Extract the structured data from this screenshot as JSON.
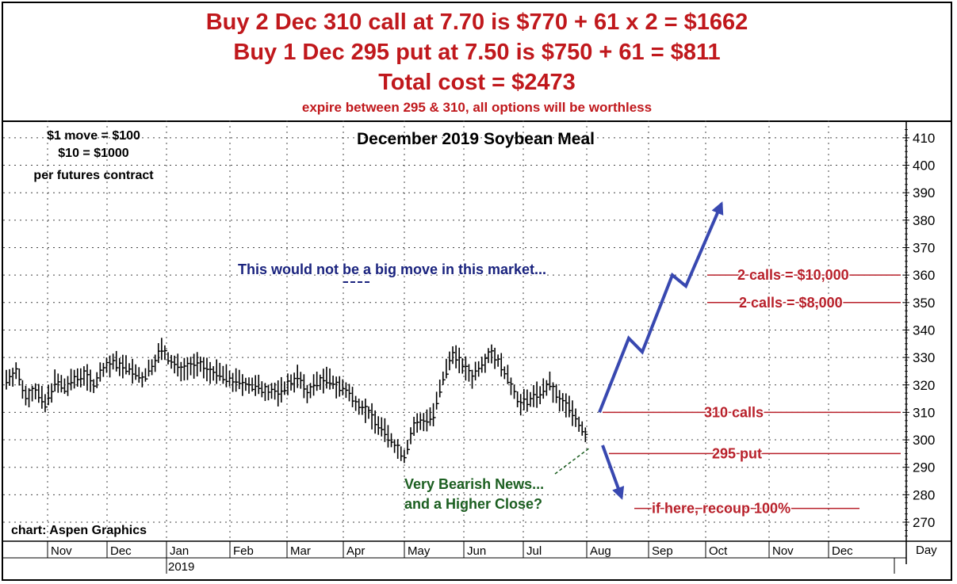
{
  "header": {
    "line1": "Buy 2 Dec 310 call at 7.70 is $770 + 61 x 2 = $1662",
    "line2": "Buy 1 Dec 295 put at 7.50 is $750 + 61 = $811",
    "line3": "Total cost = $2473",
    "line4": "expire between 295 & 310, all options will be worthless"
  },
  "chart_data": {
    "type": "bar",
    "title": "December 2019 Soybean Meal",
    "ylim": [
      265,
      413
    ],
    "yticks": [
      270,
      280,
      290,
      300,
      310,
      320,
      330,
      340,
      350,
      360,
      370,
      380,
      390,
      400,
      410
    ],
    "x_axis_label": "Day",
    "month_labels": [
      "Nov",
      "Dec",
      "Jan",
      "Feb",
      "Mar",
      "Apr",
      "May",
      "Jun",
      "Jul",
      "Aug",
      "Sep",
      "Oct",
      "Nov",
      "Dec"
    ],
    "year_label": "2019",
    "grid": true,
    "price_path": [
      [
        0,
        322
      ],
      [
        3,
        325
      ],
      [
        6,
        316
      ],
      [
        9,
        318
      ],
      [
        12,
        313
      ],
      [
        15,
        321
      ],
      [
        18,
        319
      ],
      [
        21,
        322
      ],
      [
        24,
        324
      ],
      [
        27,
        320
      ],
      [
        30,
        326
      ],
      [
        33,
        328
      ],
      [
        36,
        327
      ],
      [
        39,
        325
      ],
      [
        42,
        322
      ],
      [
        45,
        327
      ],
      [
        48,
        333
      ],
      [
        51,
        328
      ],
      [
        54,
        326
      ],
      [
        57,
        327
      ],
      [
        60,
        327
      ],
      [
        63,
        325
      ],
      [
        66,
        324
      ],
      [
        69,
        322
      ],
      [
        72,
        321
      ],
      [
        75,
        320
      ],
      [
        78,
        319
      ],
      [
        81,
        318
      ],
      [
        84,
        317
      ],
      [
        87,
        320
      ],
      [
        90,
        323
      ],
      [
        93,
        317
      ],
      [
        96,
        321
      ],
      [
        99,
        322
      ],
      [
        102,
        320
      ],
      [
        105,
        318
      ],
      [
        108,
        314
      ],
      [
        111,
        311
      ],
      [
        114,
        307
      ],
      [
        117,
        303
      ],
      [
        120,
        298
      ],
      [
        123,
        294
      ],
      [
        126,
        305
      ],
      [
        129,
        307
      ],
      [
        132,
        309
      ],
      [
        135,
        322
      ],
      [
        138,
        332
      ],
      [
        141,
        327
      ],
      [
        144,
        323
      ],
      [
        147,
        328
      ],
      [
        150,
        332
      ],
      [
        153,
        327
      ],
      [
        156,
        320
      ],
      [
        159,
        313
      ],
      [
        162,
        315
      ],
      [
        165,
        317
      ],
      [
        168,
        320
      ],
      [
        171,
        314
      ],
      [
        174,
        312
      ],
      [
        177,
        306
      ],
      [
        180,
        300
      ]
    ],
    "projection_up": [
      [
        310,
        "Aug"
      ],
      [
        337,
        "Aug-Sep"
      ],
      [
        332,
        "Sep"
      ],
      [
        360,
        "Sep"
      ],
      [
        356,
        "Sep"
      ],
      [
        386,
        "Oct"
      ]
    ],
    "projection_down": [
      [
        298,
        "Aug"
      ],
      [
        279,
        "Aug"
      ]
    ],
    "reference_lines": [
      {
        "level": 360,
        "label": "2 calls = $10,000"
      },
      {
        "level": 350,
        "label": "2 calls = $8,000"
      },
      {
        "level": 310,
        "label": "310 calls"
      },
      {
        "level": 295,
        "label": "295 put"
      },
      {
        "level": 275,
        "label": "if here, recoup 100%"
      }
    ],
    "notes": {
      "move_value_1": "$1 move = $100",
      "move_value_2": "$10 = $1000",
      "move_value_3": "per futures contract",
      "big_move": "This would not be a big move in this market...",
      "big_move_emph": "not",
      "bearish_1": "Very Bearish News...",
      "bearish_2": "and a Higher Close?",
      "source": "chart: Aspen Graphics"
    },
    "colors": {
      "headline": "#c0181c",
      "reference": "#b8202a",
      "arrow": "#3848b0",
      "note_blue": "#1a237e",
      "note_green": "#1b5e20",
      "price": "#000000"
    }
  }
}
